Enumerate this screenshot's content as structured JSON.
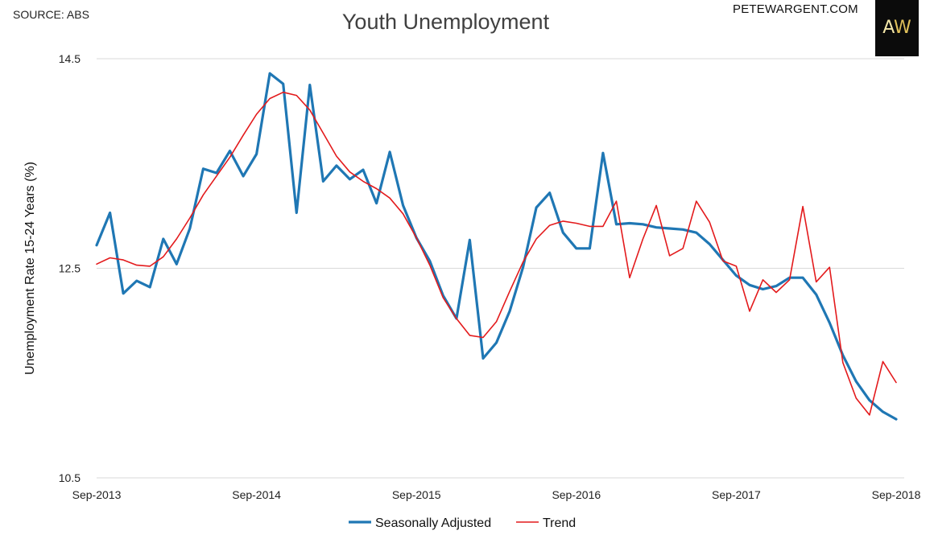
{
  "header": {
    "source": "SOURCE: ABS",
    "brand": "PETEWARGENT.COM",
    "logo": {
      "text_a": "A",
      "text_w": "W"
    }
  },
  "colors": {
    "seasonally_adjusted": "#1f77b4",
    "trend": "#e31a1c",
    "grid": "#d9d9d9"
  },
  "chart_data": {
    "type": "line",
    "title": "Youth Unemployment",
    "xlabel": "",
    "ylabel": "Unemployment Rate 15-24 Years (%)",
    "ylim": [
      10.5,
      14.5
    ],
    "yticks": [
      "10.5",
      "12.5",
      "14.5"
    ],
    "xticks": [
      {
        "index": 0,
        "label": "Sep-2013"
      },
      {
        "index": 12,
        "label": "Sep-2014"
      },
      {
        "index": 24,
        "label": "Sep-2015"
      },
      {
        "index": 36,
        "label": "Sep-2016"
      },
      {
        "index": 48,
        "label": "Sep-2017"
      },
      {
        "index": 60,
        "label": "Sep-2018"
      }
    ],
    "x_start": "Sep-2013",
    "frequency": "monthly",
    "grid": true,
    "legend": "bottom",
    "series": [
      {
        "name": "Seasonally Adjusted",
        "values": [
          12.72,
          13.03,
          12.26,
          12.38,
          12.32,
          12.78,
          12.54,
          12.88,
          13.45,
          13.41,
          13.62,
          13.38,
          13.59,
          14.36,
          14.26,
          13.03,
          14.25,
          13.33,
          13.48,
          13.35,
          13.44,
          13.12,
          13.61,
          13.1,
          12.79,
          12.57,
          12.24,
          12.02,
          12.77,
          11.64,
          11.79,
          12.09,
          12.51,
          13.08,
          13.22,
          12.84,
          12.69,
          12.69,
          13.6,
          12.92,
          12.93,
          12.92,
          12.89,
          12.88,
          12.87,
          12.84,
          12.73,
          12.58,
          12.43,
          12.34,
          12.3,
          12.33,
          12.41,
          12.41,
          12.25,
          11.98,
          11.67,
          11.42,
          11.24,
          11.13,
          11.06
        ]
      },
      {
        "name": "Trend",
        "values": [
          12.54,
          12.6,
          12.58,
          12.53,
          12.52,
          12.61,
          12.78,
          12.98,
          13.2,
          13.38,
          13.56,
          13.77,
          13.97,
          14.12,
          14.18,
          14.15,
          14.01,
          13.79,
          13.57,
          13.42,
          13.33,
          13.26,
          13.17,
          13.02,
          12.79,
          12.53,
          12.22,
          12.02,
          11.86,
          11.84,
          11.99,
          12.28,
          12.56,
          12.78,
          12.91,
          12.95,
          12.93,
          12.9,
          12.9,
          13.14,
          12.41,
          12.78,
          13.1,
          12.62,
          12.69,
          13.14,
          12.94,
          12.57,
          12.52,
          12.09,
          12.39,
          12.27,
          12.39,
          13.09,
          12.37,
          12.51,
          11.6,
          11.26,
          11.1,
          11.61,
          11.41
        ]
      }
    ]
  }
}
